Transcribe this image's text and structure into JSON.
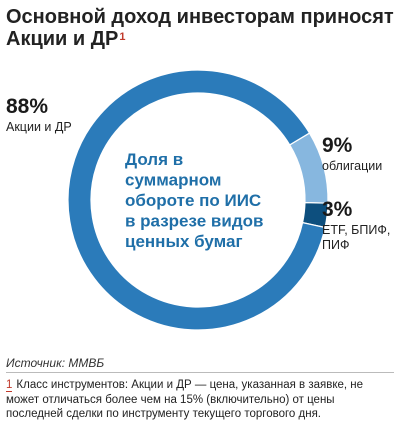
{
  "title": "Основной доход инвесторам приносят Акции и ДР",
  "title_footnote_mark": "1",
  "chart_data": {
    "type": "pie",
    "center_text": [
      "Доля в",
      "суммарном",
      "обороте по ИИС",
      "в разрезе видов",
      "ценных бумаг"
    ],
    "slices": [
      {
        "label": "Акции и ДР",
        "value": 88,
        "value_label": "88%",
        "label_lines": [
          "Акции и ДР"
        ],
        "color": "#2b7bba"
      },
      {
        "label": "облигации",
        "value": 9,
        "value_label": "9%",
        "label_lines": [
          "облигации"
        ],
        "color": "#87b7df"
      },
      {
        "label": "ETF, БПИФ, ПИФ",
        "value": 3,
        "value_label": "3%",
        "label_lines": [
          "ETF, БПИФ,",
          "ПИФ"
        ],
        "color": "#0d4f7e"
      }
    ]
  },
  "source": "Источник: ММВБ",
  "footnote": {
    "number": "1",
    "text": "Класс инструментов: Акции и ДР — цена, указанная в заявке, не может отличаться более чем на 15% (включительно) от цены последней сделки по инструменту текущего торгового дня."
  }
}
